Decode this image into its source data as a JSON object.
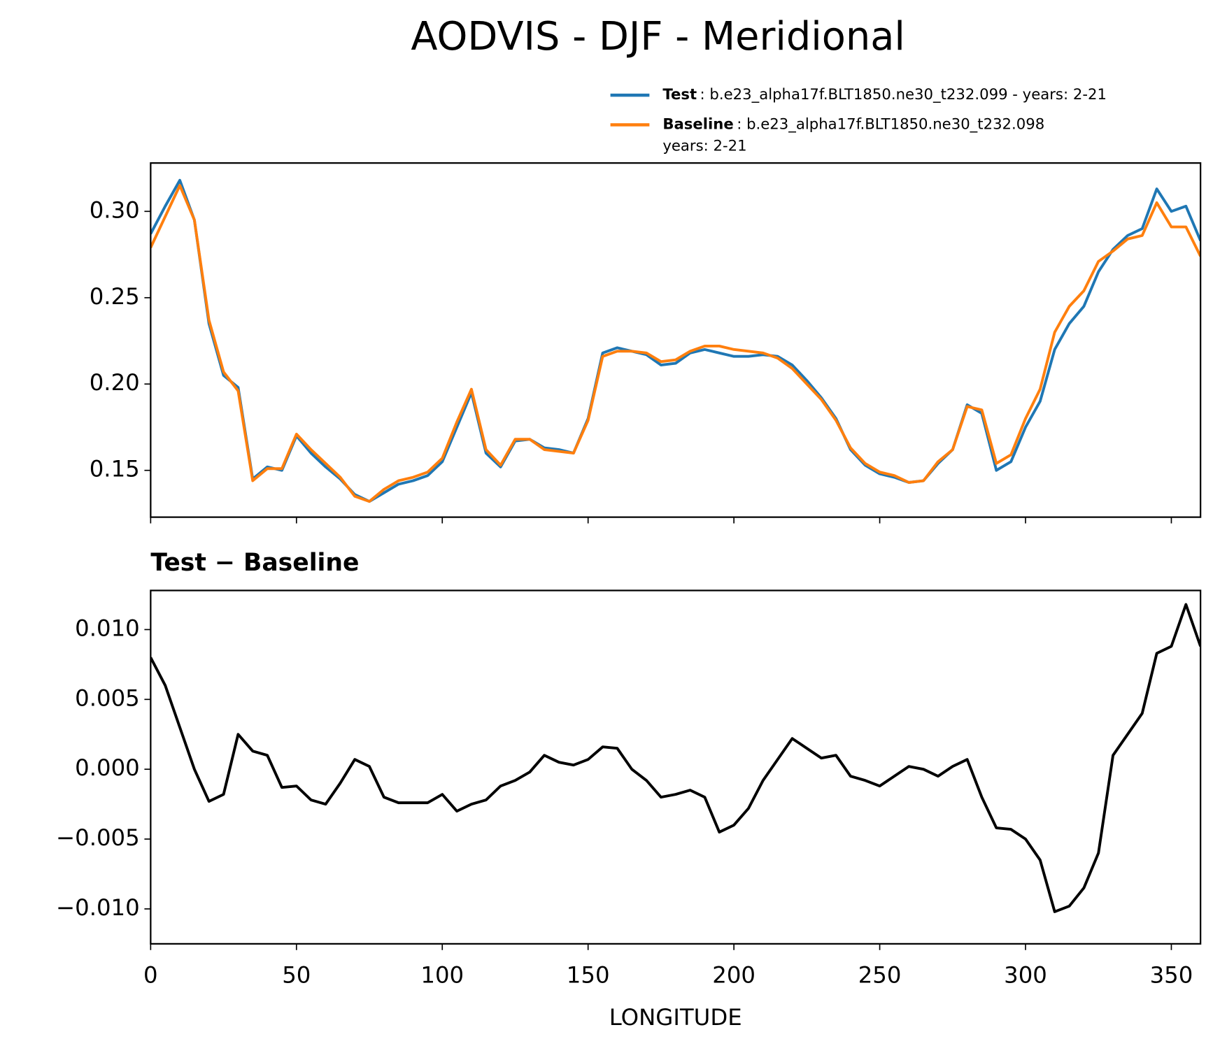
{
  "title": "AODVIS - DJF - Meridional",
  "chart_data": [
    {
      "type": "line",
      "x": [
        0,
        5,
        10,
        15,
        20,
        25,
        30,
        35,
        40,
        45,
        50,
        55,
        60,
        65,
        70,
        75,
        80,
        85,
        90,
        95,
        100,
        105,
        110,
        115,
        120,
        125,
        130,
        135,
        140,
        145,
        150,
        155,
        160,
        165,
        170,
        175,
        180,
        185,
        190,
        195,
        200,
        205,
        210,
        215,
        220,
        225,
        230,
        235,
        240,
        245,
        250,
        255,
        260,
        265,
        270,
        275,
        280,
        285,
        290,
        295,
        300,
        305,
        310,
        315,
        320,
        325,
        330,
        335,
        340,
        345,
        350,
        355,
        360
      ],
      "series": [
        {
          "name": "Test",
          "description": [
            ": b.e23_alpha17f.BLT1850.ne30_t232.099 - years: 2-21"
          ],
          "color": "#1f77b4",
          "values": [
            0.287,
            0.303,
            0.318,
            0.295,
            0.235,
            0.205,
            0.198,
            0.145,
            0.152,
            0.15,
            0.17,
            0.16,
            0.152,
            0.145,
            0.136,
            0.132,
            0.137,
            0.142,
            0.144,
            0.147,
            0.155,
            0.175,
            0.195,
            0.16,
            0.152,
            0.167,
            0.168,
            0.163,
            0.162,
            0.16,
            0.18,
            0.218,
            0.221,
            0.219,
            0.217,
            0.211,
            0.212,
            0.218,
            0.22,
            0.218,
            0.216,
            0.216,
            0.217,
            0.216,
            0.211,
            0.202,
            0.192,
            0.18,
            0.162,
            0.153,
            0.148,
            0.146,
            0.143,
            0.144,
            0.154,
            0.162,
            0.188,
            0.183,
            0.15,
            0.155,
            0.175,
            0.19,
            0.22,
            0.235,
            0.245,
            0.265,
            0.278,
            0.286,
            0.29,
            0.313,
            0.3,
            0.303,
            0.283
          ]
        },
        {
          "name": "Baseline",
          "description": [
            ": b.e23_alpha17f.BLT1850.ne30_t232.098",
            "years: 2-21"
          ],
          "color": "#ff7f0e",
          "values": [
            0.279,
            0.297,
            0.315,
            0.295,
            0.237,
            0.207,
            0.196,
            0.144,
            0.151,
            0.151,
            0.171,
            0.162,
            0.154,
            0.146,
            0.135,
            0.132,
            0.139,
            0.144,
            0.146,
            0.149,
            0.157,
            0.178,
            0.197,
            0.162,
            0.153,
            0.168,
            0.168,
            0.162,
            0.161,
            0.16,
            0.179,
            0.216,
            0.219,
            0.219,
            0.218,
            0.213,
            0.214,
            0.219,
            0.222,
            0.222,
            0.22,
            0.219,
            0.218,
            0.215,
            0.209,
            0.2,
            0.191,
            0.179,
            0.163,
            0.154,
            0.149,
            0.147,
            0.143,
            0.144,
            0.155,
            0.162,
            0.187,
            0.185,
            0.154,
            0.159,
            0.18,
            0.197,
            0.23,
            0.245,
            0.254,
            0.271,
            0.277,
            0.284,
            0.286,
            0.305,
            0.291,
            0.291,
            0.274
          ]
        }
      ],
      "xlim": [
        0,
        360
      ],
      "ylim": [
        0.1229,
        0.328
      ],
      "yticks": [
        {
          "value": 0.15,
          "label": "0.15"
        },
        {
          "value": 0.2,
          "label": "0.20"
        },
        {
          "value": 0.25,
          "label": "0.25"
        },
        {
          "value": 0.3,
          "label": "0.30"
        }
      ]
    },
    {
      "type": "line",
      "title": "Test − Baseline",
      "xlabel": "LONGITUDE",
      "x": [
        0,
        5,
        10,
        15,
        20,
        25,
        30,
        35,
        40,
        45,
        50,
        55,
        60,
        65,
        70,
        75,
        80,
        85,
        90,
        95,
        100,
        105,
        110,
        115,
        120,
        125,
        130,
        135,
        140,
        145,
        150,
        155,
        160,
        165,
        170,
        175,
        180,
        185,
        190,
        195,
        200,
        205,
        210,
        215,
        220,
        225,
        230,
        235,
        240,
        245,
        250,
        255,
        260,
        265,
        270,
        275,
        280,
        285,
        290,
        295,
        300,
        305,
        310,
        315,
        320,
        325,
        330,
        335,
        340,
        345,
        350,
        355,
        360
      ],
      "series": [
        {
          "color": "#000000",
          "values": [
            0.008,
            0.006,
            0.003,
            0.0,
            -0.0023,
            -0.0018,
            0.0025,
            0.0013,
            0.001,
            -0.0013,
            -0.0012,
            -0.0022,
            -0.0025,
            -0.001,
            0.0007,
            0.0002,
            -0.002,
            -0.0024,
            -0.0024,
            -0.0024,
            -0.0018,
            -0.003,
            -0.0025,
            -0.0022,
            -0.0012,
            -0.0008,
            -0.0002,
            0.001,
            0.0005,
            0.0003,
            0.0007,
            0.0016,
            0.0015,
            0.0,
            -0.0008,
            -0.002,
            -0.0018,
            -0.0015,
            -0.002,
            -0.0045,
            -0.004,
            -0.0028,
            -0.0008,
            0.0007,
            0.0022,
            0.0015,
            0.0008,
            0.001,
            -0.0005,
            -0.0008,
            -0.0012,
            -0.0005,
            0.0002,
            0.0,
            -0.0005,
            0.0002,
            0.0007,
            -0.002,
            -0.0042,
            -0.0043,
            -0.005,
            -0.0065,
            -0.0102,
            -0.0098,
            -0.0085,
            -0.006,
            0.001,
            0.0025,
            0.004,
            0.0083,
            0.0088,
            0.0118,
            0.0088
          ]
        }
      ],
      "xlim": [
        0,
        360
      ],
      "xticks": [
        0,
        50,
        100,
        150,
        200,
        250,
        300,
        350
      ],
      "ylim": [
        -0.0125,
        0.0128
      ],
      "yticks": [
        {
          "value": -0.01,
          "label": "−0.010"
        },
        {
          "value": -0.005,
          "label": "−0.005"
        },
        {
          "value": 0,
          "label": "0.000"
        },
        {
          "value": 0.005,
          "label": "0.005"
        },
        {
          "value": 0.01,
          "label": "0.010"
        }
      ]
    }
  ]
}
